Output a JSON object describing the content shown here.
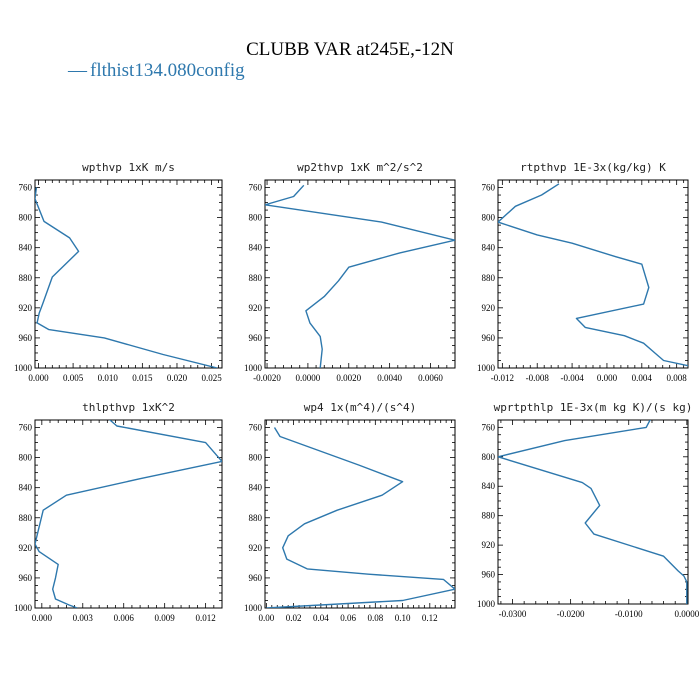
{
  "figure": {
    "title": "CLUBB VAR at245E,-12N",
    "legend_label": "flthist134.080config",
    "legend_marker": "—",
    "line_color": "#2e78ad"
  },
  "chart_data": [
    {
      "type": "line",
      "title": "wpthvp  1xK m/s",
      "xlim": [
        -0.0005,
        0.0265
      ],
      "ylim": [
        1000,
        750
      ],
      "xticks": [
        0.0,
        0.005,
        0.01,
        0.015,
        0.02,
        0.025
      ],
      "xtick_labels": [
        "0.000",
        "0.005",
        "0.010",
        "0.015",
        "0.020",
        "0.025"
      ],
      "yticks": [
        760,
        800,
        840,
        880,
        920,
        960,
        1000
      ],
      "ytick_labels": [
        "760",
        "800",
        "840",
        "880",
        "920",
        "960",
        "1000"
      ],
      "series": [
        {
          "x": [
            -0.0003,
            -0.0005,
            0.0008,
            0.0045,
            0.0058,
            0.002,
            0.0006,
            0.0001,
            -0.0002,
            0.0015,
            0.0095,
            0.018,
            0.0258
          ],
          "y": [
            760,
            775,
            805,
            827,
            845,
            879,
            915,
            927,
            940,
            949,
            960,
            982,
            1000
          ]
        }
      ]
    },
    {
      "type": "line",
      "title": "wp2thvp  1xK m^2/s^2",
      "xlim": [
        -0.0021,
        0.0072
      ],
      "ylim": [
        1000,
        750
      ],
      "xticks": [
        -0.002,
        0.0,
        0.002,
        0.004,
        0.006
      ],
      "xtick_labels": [
        "-0.0020",
        "0.0000",
        "0.0020",
        "0.0040",
        "0.0060"
      ],
      "yticks": [
        760,
        800,
        840,
        880,
        920,
        960,
        1000
      ],
      "ytick_labels": [
        "760",
        "800",
        "840",
        "880",
        "920",
        "960",
        "1000"
      ],
      "series": [
        {
          "x": [
            -0.0002,
            -0.0007,
            -0.0021,
            0.0036,
            0.0072,
            0.0045,
            0.002,
            0.0015,
            0.0008,
            -0.0001,
            0.0001,
            0.0006,
            0.0007,
            0.0006
          ],
          "y": [
            757,
            772,
            783,
            806,
            830,
            847,
            866,
            884,
            905,
            924,
            940,
            958,
            975,
            1000
          ]
        }
      ]
    },
    {
      "type": "line",
      "title": "rtpthvp  1E-3x(kg/kg) K",
      "xlim": [
        -0.0125,
        0.0093
      ],
      "ylim": [
        1000,
        750
      ],
      "xticks": [
        -0.012,
        -0.008,
        -0.004,
        0.0,
        0.004,
        0.008
      ],
      "xtick_labels": [
        "-0.012",
        "-0.008",
        "-0.004",
        "0.000",
        "0.004",
        "0.008"
      ],
      "yticks": [
        760,
        800,
        840,
        880,
        920,
        960,
        1000
      ],
      "ytick_labels": [
        "760",
        "800",
        "840",
        "880",
        "920",
        "960",
        "1000"
      ],
      "series": [
        {
          "x": [
            -0.0055,
            -0.0075,
            -0.0105,
            -0.0125,
            -0.008,
            -0.004,
            0.001,
            0.004,
            0.0048,
            0.0042,
            -0.0035,
            -0.0025,
            0.002,
            0.0042,
            0.0055,
            0.0065,
            0.0093
          ],
          "y": [
            755,
            770,
            785,
            806,
            823,
            834,
            852,
            862,
            893,
            915,
            934,
            946,
            957,
            967,
            980,
            990,
            997
          ]
        }
      ]
    },
    {
      "type": "line",
      "title": "thlpthvp  1xK^2",
      "xlim": [
        -0.0005,
        0.0132
      ],
      "ylim": [
        1000,
        750
      ],
      "xticks": [
        0.0,
        0.003,
        0.006,
        0.009,
        0.012
      ],
      "xtick_labels": [
        "0.000",
        "0.003",
        "0.006",
        "0.009",
        "0.012"
      ],
      "yticks": [
        760,
        800,
        840,
        880,
        920,
        960,
        1000
      ],
      "ytick_labels": [
        "760",
        "800",
        "840",
        "880",
        "920",
        "960",
        "1000"
      ],
      "series": [
        {
          "x": [
            0.0048,
            0.0055,
            0.012,
            0.0132,
            0.0072,
            0.0018,
            0.0001,
            -0.0003,
            -0.0005,
            -0.0002,
            0.0012,
            0.001,
            0.0008,
            0.001,
            0.002,
            0.0026
          ],
          "y": [
            747,
            758,
            780,
            805,
            828,
            850,
            870,
            900,
            915,
            925,
            942,
            960,
            975,
            988,
            996,
            1000
          ]
        }
      ]
    },
    {
      "type": "line",
      "title": "wp4  1x(m^4)/(s^4)",
      "xlim": [
        -0.001,
        0.1385
      ],
      "ylim": [
        1000,
        750
      ],
      "xticks": [
        0.0,
        0.02,
        0.04,
        0.06,
        0.08,
        0.1,
        0.12
      ],
      "xtick_labels": [
        "0.00",
        "0.02",
        "0.04",
        "0.06",
        "0.08",
        "0.10",
        "0.12"
      ],
      "yticks": [
        760,
        800,
        840,
        880,
        920,
        960,
        1000
      ],
      "ytick_labels": [
        "760",
        "800",
        "840",
        "880",
        "920",
        "960",
        "1000"
      ],
      "series": [
        {
          "x": [
            0.006,
            0.01,
            0.068,
            0.1,
            0.085,
            0.052,
            0.028,
            0.016,
            0.012,
            0.015,
            0.03,
            0.075,
            0.13,
            0.1385,
            0.1,
            0.0
          ],
          "y": [
            760,
            772,
            810,
            832,
            850,
            870,
            888,
            904,
            920,
            935,
            948,
            955,
            962,
            975,
            990,
            1000
          ]
        }
      ]
    },
    {
      "type": "line",
      "title": "wprtpthlp  1E-3x(m kg K)/(s kg)",
      "xlim": [
        -0.0325,
        0.0002
      ],
      "ylim": [
        1000,
        750
      ],
      "xticks": [
        -0.03,
        -0.02,
        -0.01,
        0.0
      ],
      "xtick_labels": [
        "-0.0300",
        "-0.0200",
        "-0.0100",
        "0.0000"
      ],
      "yticks": [
        760,
        800,
        840,
        880,
        920,
        960,
        1000
      ],
      "ytick_labels": [
        "760",
        "800",
        "840",
        "880",
        "920",
        "960",
        "1000"
      ],
      "series": [
        {
          "x": [
            -0.006,
            -0.007,
            -0.021,
            -0.0325,
            -0.018,
            -0.0165,
            -0.015,
            -0.0175,
            -0.016,
            -0.004,
            -0.0015,
            -0.0005,
            0.0,
            0.0,
            0.0
          ],
          "y": [
            745,
            760,
            778,
            800,
            835,
            843,
            866,
            890,
            905,
            935,
            955,
            962,
            970,
            985,
            1000
          ]
        }
      ]
    }
  ]
}
